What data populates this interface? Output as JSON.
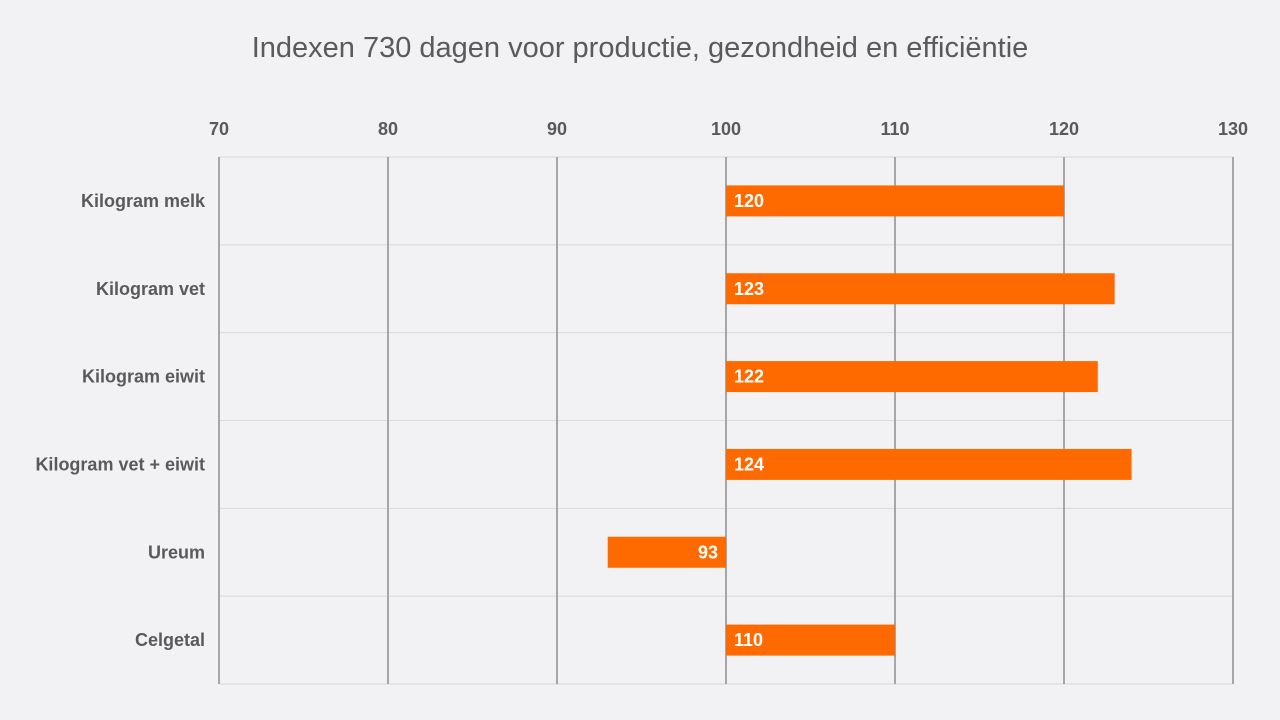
{
  "chart_data": {
    "type": "bar",
    "orientation": "horizontal",
    "title": "Indexen 730 dagen voor productie, gezondheid en efficiëntie",
    "categories": [
      "Kilogram melk",
      "Kilogram vet",
      "Kilogram eiwit",
      "Kilogram vet + eiwit",
      "Ureum",
      "Celgetal"
    ],
    "values": [
      120,
      123,
      122,
      124,
      93,
      110
    ],
    "baseline": 100,
    "xlim": [
      70,
      130
    ],
    "xticks": [
      70,
      80,
      90,
      100,
      110,
      120,
      130
    ],
    "axis_position": "top",
    "grid": true,
    "legend": "none",
    "data_labels": true,
    "bar_color": "#ff6a00",
    "grid_major_color": "#a6a6a6",
    "grid_minor_color": "#d9d9d9",
    "background_color": "#f2f1f3"
  }
}
